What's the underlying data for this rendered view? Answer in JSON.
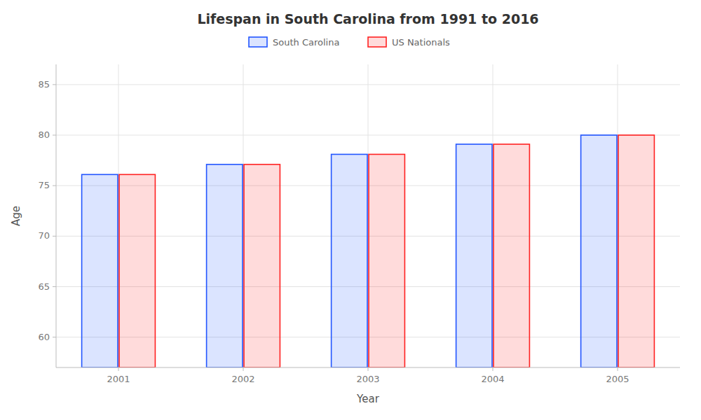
{
  "chart_data": {
    "type": "bar",
    "title": "Lifespan in South Carolina from 1991 to 2016",
    "x_label": "Year",
    "y_label": "Age",
    "categories": [
      "2001",
      "2002",
      "2003",
      "2004",
      "2005"
    ],
    "series": [
      {
        "name": "South Carolina",
        "color": "#2255ff",
        "values": [
          76.1,
          77.1,
          78.1,
          79.1,
          80.0
        ]
      },
      {
        "name": "US Nationals",
        "color": "#ff2222",
        "values": [
          76.1,
          77.1,
          78.1,
          79.1,
          80.0
        ]
      }
    ],
    "ylim": [
      57,
      87
    ],
    "yticks": [
      60,
      65,
      70,
      75,
      80,
      85
    ],
    "grid": true,
    "legend": "top"
  }
}
